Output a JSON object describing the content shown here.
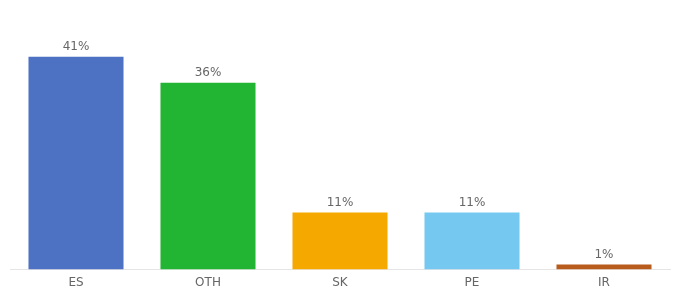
{
  "chart_data": {
    "type": "bar",
    "categories": [
      "ES",
      "OTH",
      "SK",
      "PE",
      "IR"
    ],
    "values": [
      41,
      36,
      11,
      11,
      1
    ],
    "value_labels": [
      "41%",
      "36%",
      "11%",
      "11%",
      "1%"
    ],
    "colors": [
      "#4d72c4",
      "#21b533",
      "#f5a800",
      "#75c8f0",
      "#b85c1e"
    ],
    "ylim": [
      0,
      50
    ],
    "data_labels": true,
    "tick_labels": "x",
    "grid": false
  }
}
